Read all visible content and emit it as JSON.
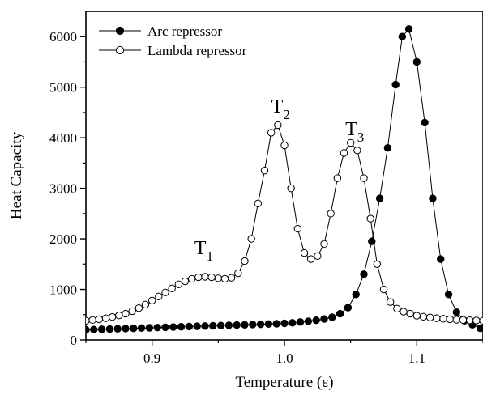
{
  "chart_data": {
    "type": "scatter",
    "title": "",
    "xlabel": "Temperature (ε)",
    "ylabel": "Heat Capacity",
    "xlim": [
      0.85,
      1.15
    ],
    "ylim": [
      0,
      6500
    ],
    "x_ticks": [
      0.9,
      1.0,
      1.1
    ],
    "x_tick_labels": [
      "0.9",
      "1.0",
      "1.1"
    ],
    "y_ticks": [
      0,
      1000,
      2000,
      3000,
      4000,
      5000,
      6000
    ],
    "y_tick_labels": [
      "0",
      "1000",
      "2000",
      "3000",
      "4000",
      "5000",
      "6000"
    ],
    "grid": false,
    "legend_position": "top-left",
    "annotations": [
      {
        "label": "T",
        "sub": "1",
        "x": 0.932,
        "y": 1700
      },
      {
        "label": "T",
        "sub": "2",
        "x": 0.99,
        "y": 4500
      },
      {
        "label": "T",
        "sub": "3",
        "x": 1.046,
        "y": 4050
      }
    ],
    "series": [
      {
        "name": "Arc repressor",
        "marker": "filled-circle",
        "x": [
          0.85,
          0.856,
          0.862,
          0.868,
          0.874,
          0.88,
          0.886,
          0.892,
          0.898,
          0.904,
          0.91,
          0.916,
          0.922,
          0.928,
          0.934,
          0.94,
          0.946,
          0.952,
          0.958,
          0.964,
          0.97,
          0.976,
          0.982,
          0.988,
          0.994,
          1.0,
          1.006,
          1.012,
          1.018,
          1.024,
          1.03,
          1.036,
          1.042,
          1.048,
          1.054,
          1.06,
          1.066,
          1.072,
          1.078,
          1.084,
          1.089,
          1.094,
          1.1,
          1.106,
          1.112,
          1.118,
          1.124,
          1.13,
          1.136,
          1.142,
          1.148
        ],
        "y": [
          200,
          205,
          210,
          215,
          220,
          225,
          230,
          235,
          240,
          245,
          250,
          255,
          260,
          265,
          270,
          275,
          280,
          285,
          290,
          295,
          300,
          305,
          310,
          315,
          320,
          330,
          340,
          355,
          370,
          390,
          415,
          450,
          520,
          640,
          900,
          1300,
          1950,
          2800,
          3800,
          5050,
          6000,
          6150,
          5500,
          4300,
          2800,
          1600,
          900,
          550,
          380,
          300,
          230
        ]
      },
      {
        "name": "Lambda repressor",
        "marker": "open-circle",
        "x": [
          0.85,
          0.855,
          0.86,
          0.865,
          0.87,
          0.875,
          0.88,
          0.885,
          0.89,
          0.895,
          0.9,
          0.905,
          0.91,
          0.915,
          0.92,
          0.925,
          0.93,
          0.935,
          0.94,
          0.945,
          0.95,
          0.955,
          0.96,
          0.965,
          0.97,
          0.975,
          0.98,
          0.985,
          0.99,
          0.995,
          1.0,
          1.005,
          1.01,
          1.015,
          1.02,
          1.025,
          1.03,
          1.035,
          1.04,
          1.045,
          1.05,
          1.055,
          1.06,
          1.065,
          1.07,
          1.075,
          1.08,
          1.085,
          1.09,
          1.095,
          1.1,
          1.105,
          1.11,
          1.115,
          1.12,
          1.125,
          1.13,
          1.135,
          1.14,
          1.145,
          1.15
        ],
        "y": [
          380,
          395,
          410,
          430,
          455,
          485,
          520,
          570,
          630,
          700,
          780,
          860,
          940,
          1020,
          1100,
          1160,
          1210,
          1240,
          1250,
          1240,
          1220,
          1210,
          1230,
          1320,
          1560,
          2000,
          2700,
          3350,
          4100,
          4250,
          3850,
          3000,
          2200,
          1720,
          1600,
          1660,
          1900,
          2500,
          3200,
          3700,
          3900,
          3750,
          3200,
          2400,
          1500,
          1000,
          750,
          620,
          560,
          520,
          480,
          460,
          445,
          430,
          420,
          410,
          400,
          395,
          390,
          385,
          380
        ]
      }
    ]
  }
}
